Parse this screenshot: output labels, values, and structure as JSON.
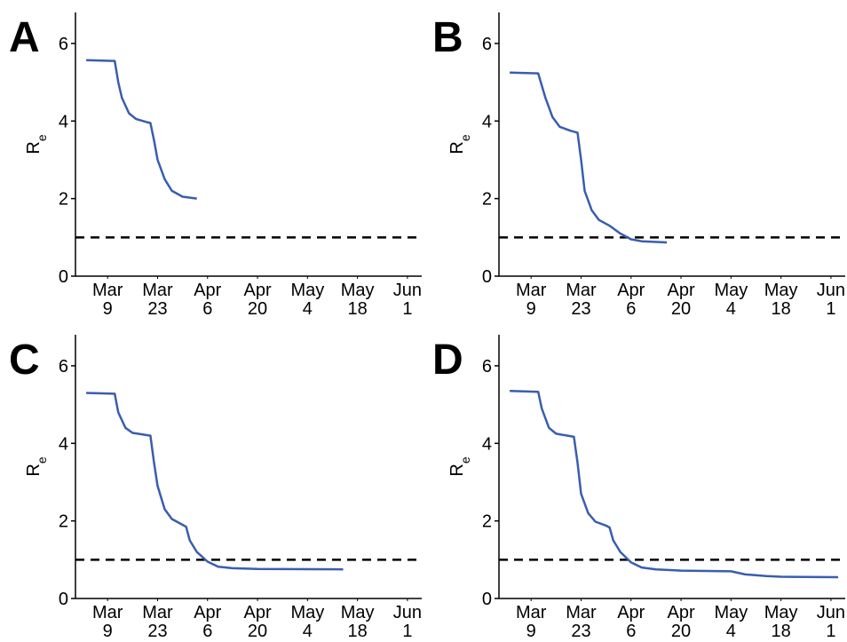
{
  "chart_data": [
    {
      "type": "line",
      "panel": "A",
      "ylabel": {
        "main": "R",
        "sub": "e"
      },
      "x": [
        "Mar 3",
        "Mar 11",
        "Mar 12",
        "Mar 13",
        "Mar 15",
        "Mar 17",
        "Mar 20",
        "Mar 21",
        "Mar 22",
        "Mar 23",
        "Mar 25",
        "Mar 27",
        "Mar 30",
        "Apr 3"
      ],
      "values": [
        5.57,
        5.55,
        5.0,
        4.6,
        4.2,
        4.05,
        3.97,
        3.95,
        3.5,
        3.0,
        2.5,
        2.2,
        2.05,
        2.0
      ],
      "color": "#3a5dae",
      "reference_line": 1,
      "xlim": [
        "Feb 28",
        "Jun 5"
      ],
      "xticks": [
        {
          "value": "Mar 9",
          "label": [
            "Mar",
            "9"
          ]
        },
        {
          "value": "Mar 23",
          "label": [
            "Mar",
            "23"
          ]
        },
        {
          "value": "Apr 6",
          "label": [
            "Apr",
            "6"
          ]
        },
        {
          "value": "Apr 20",
          "label": [
            "Apr",
            "20"
          ]
        },
        {
          "value": "May 4",
          "label": [
            "May",
            "4"
          ]
        },
        {
          "value": "May 18",
          "label": [
            "May",
            "18"
          ]
        },
        {
          "value": "Jun 1",
          "label": [
            "Jun",
            "1"
          ]
        }
      ],
      "ylim": [
        0,
        6.8
      ],
      "yticks": [
        0,
        2,
        4,
        6
      ]
    },
    {
      "type": "line",
      "panel": "B",
      "ylabel": {
        "main": "R",
        "sub": "e"
      },
      "x": [
        "Mar 3",
        "Mar 11",
        "Mar 13",
        "Mar 15",
        "Mar 17",
        "Mar 20",
        "Mar 22",
        "Mar 23",
        "Mar 24",
        "Mar 26",
        "Mar 28",
        "Mar 31",
        "Apr 3",
        "Apr 6",
        "Apr 9",
        "Apr 16"
      ],
      "values": [
        5.25,
        5.23,
        4.6,
        4.1,
        3.85,
        3.75,
        3.7,
        3.0,
        2.2,
        1.7,
        1.45,
        1.3,
        1.1,
        0.95,
        0.9,
        0.87
      ],
      "color": "#3a5dae",
      "reference_line": 1,
      "xlim": [
        "Feb 28",
        "Jun 5"
      ],
      "xticks": [
        {
          "value": "Mar 9",
          "label": [
            "Mar",
            "9"
          ]
        },
        {
          "value": "Mar 23",
          "label": [
            "Mar",
            "23"
          ]
        },
        {
          "value": "Apr 6",
          "label": [
            "Apr",
            "6"
          ]
        },
        {
          "value": "Apr 20",
          "label": [
            "Apr",
            "20"
          ]
        },
        {
          "value": "May 4",
          "label": [
            "May",
            "4"
          ]
        },
        {
          "value": "May 18",
          "label": [
            "May",
            "18"
          ]
        },
        {
          "value": "Jun 1",
          "label": [
            "Jun",
            "1"
          ]
        }
      ],
      "ylim": [
        0,
        6.8
      ],
      "yticks": [
        0,
        2,
        4,
        6
      ]
    },
    {
      "type": "line",
      "panel": "C",
      "ylabel": {
        "main": "R",
        "sub": "e"
      },
      "x": [
        "Mar 3",
        "Mar 11",
        "Mar 12",
        "Mar 14",
        "Mar 16",
        "Mar 21",
        "Mar 22",
        "Mar 23",
        "Mar 25",
        "Mar 27",
        "Mar 30",
        "Mar 31",
        "Apr 1",
        "Apr 3",
        "Apr 6",
        "Apr 9",
        "Apr 13",
        "Apr 20",
        "May 14"
      ],
      "values": [
        5.3,
        5.28,
        4.8,
        4.4,
        4.27,
        4.2,
        3.5,
        2.9,
        2.3,
        2.05,
        1.9,
        1.85,
        1.5,
        1.2,
        0.95,
        0.82,
        0.78,
        0.76,
        0.75
      ],
      "color": "#3a5dae",
      "reference_line": 1,
      "xlim": [
        "Feb 28",
        "Jun 5"
      ],
      "xticks": [
        {
          "value": "Mar 9",
          "label": [
            "Mar",
            "9"
          ]
        },
        {
          "value": "Mar 23",
          "label": [
            "Mar",
            "23"
          ]
        },
        {
          "value": "Apr 6",
          "label": [
            "Apr",
            "6"
          ]
        },
        {
          "value": "Apr 20",
          "label": [
            "Apr",
            "20"
          ]
        },
        {
          "value": "May 4",
          "label": [
            "May",
            "4"
          ]
        },
        {
          "value": "May 18",
          "label": [
            "May",
            "18"
          ]
        },
        {
          "value": "Jun 1",
          "label": [
            "Jun",
            "1"
          ]
        }
      ],
      "ylim": [
        0,
        6.8
      ],
      "yticks": [
        0,
        2,
        4,
        6
      ]
    },
    {
      "type": "line",
      "panel": "D",
      "ylabel": {
        "main": "R",
        "sub": "e"
      },
      "x": [
        "Mar 3",
        "Mar 11",
        "Mar 12",
        "Mar 14",
        "Mar 16",
        "Mar 21",
        "Mar 22",
        "Mar 23",
        "Mar 25",
        "Mar 27",
        "Mar 30",
        "Mar 31",
        "Apr 1",
        "Apr 3",
        "Apr 6",
        "Apr 9",
        "Apr 13",
        "Apr 20",
        "May 4",
        "May 8",
        "May 14",
        "May 18",
        "Jun 3"
      ],
      "values": [
        5.35,
        5.33,
        4.9,
        4.4,
        4.25,
        4.17,
        3.5,
        2.7,
        2.2,
        1.98,
        1.88,
        1.83,
        1.5,
        1.2,
        0.93,
        0.8,
        0.75,
        0.72,
        0.7,
        0.62,
        0.58,
        0.56,
        0.55
      ],
      "color": "#3a5dae",
      "reference_line": 1,
      "xlim": [
        "Feb 28",
        "Jun 5"
      ],
      "xticks": [
        {
          "value": "Mar 9",
          "label": [
            "Mar",
            "9"
          ]
        },
        {
          "value": "Mar 23",
          "label": [
            "Mar",
            "23"
          ]
        },
        {
          "value": "Apr 6",
          "label": [
            "Apr",
            "6"
          ]
        },
        {
          "value": "Apr 20",
          "label": [
            "Apr",
            "20"
          ]
        },
        {
          "value": "May 4",
          "label": [
            "May",
            "4"
          ]
        },
        {
          "value": "May 18",
          "label": [
            "May",
            "18"
          ]
        },
        {
          "value": "Jun 1",
          "label": [
            "Jun",
            "1"
          ]
        }
      ],
      "ylim": [
        0,
        6.8
      ],
      "yticks": [
        0,
        2,
        4,
        6
      ]
    }
  ]
}
